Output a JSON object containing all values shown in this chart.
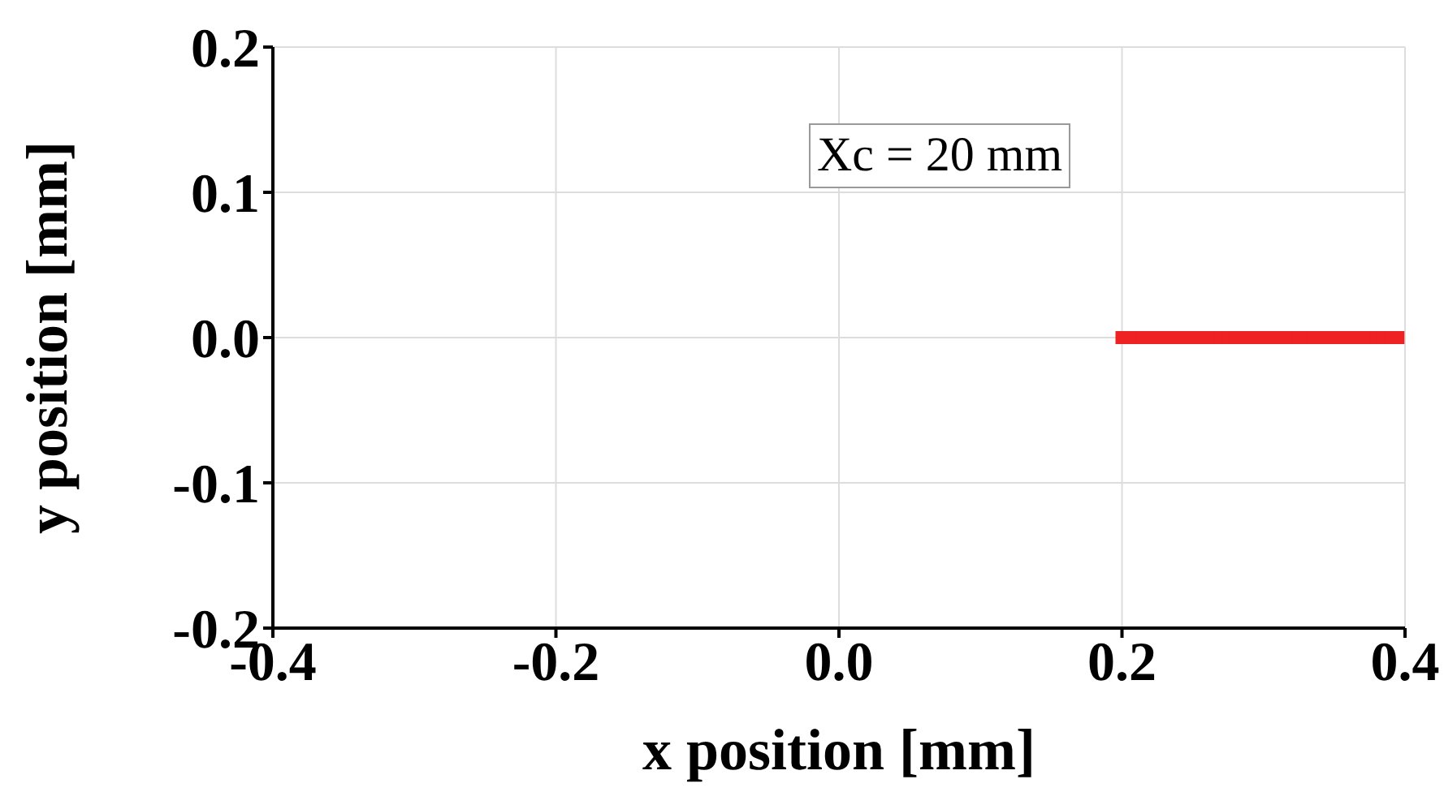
{
  "chart_data": {
    "type": "scatter",
    "xlabel": "x position [mm]",
    "ylabel": "y position [mm]",
    "annotations": [
      "Xc = 20 mm"
    ],
    "x": [
      0.2,
      0.205,
      0.21,
      0.215,
      0.22,
      0.225,
      0.23,
      0.235,
      0.24,
      0.245,
      0.25,
      0.255,
      0.26,
      0.265,
      0.27,
      0.275,
      0.28,
      0.285,
      0.29,
      0.295,
      0.3,
      0.305,
      0.31,
      0.315,
      0.32,
      0.325,
      0.33,
      0.335,
      0.34,
      0.345,
      0.35,
      0.355,
      0.36,
      0.365,
      0.37,
      0.375,
      0.38,
      0.385,
      0.39,
      0.395
    ],
    "series": [
      {
        "color": "#ee2222",
        "values": [
          0,
          0,
          0,
          0,
          0,
          0,
          0,
          0,
          0,
          0,
          0,
          0,
          0,
          0,
          0,
          0,
          0,
          0,
          0,
          0,
          0,
          0,
          0,
          0,
          0,
          0,
          0,
          0,
          0,
          0,
          0,
          0,
          0,
          0,
          0,
          0,
          0,
          0,
          0,
          0
        ]
      }
    ],
    "xlim": [
      -0.4,
      0.4
    ],
    "ylim": [
      -0.2,
      0.2
    ],
    "xticks": [
      -0.4,
      -0.2,
      {
        "value": 0,
        "label": "0.0"
      },
      0.2,
      0.4
    ],
    "yticks": [
      -0.2,
      -0.1,
      {
        "value": 0,
        "label": "0.0"
      },
      0.1,
      0.2
    ],
    "grid": true,
    "marker": "square"
  }
}
